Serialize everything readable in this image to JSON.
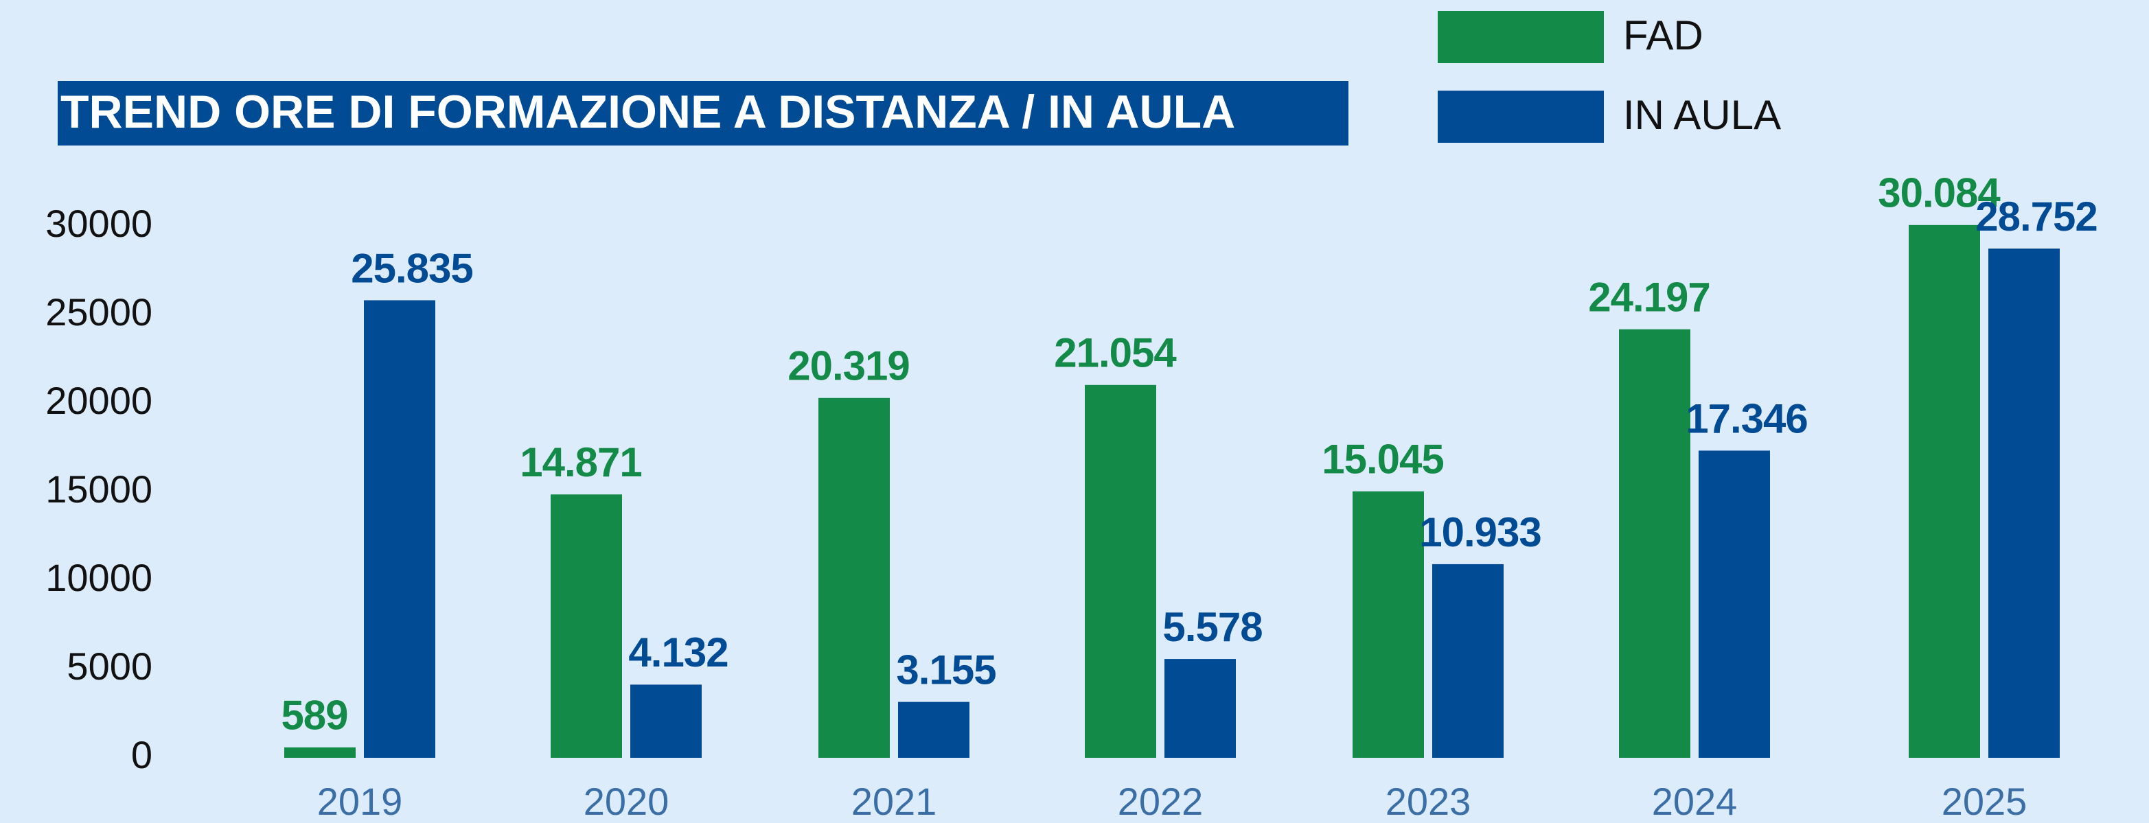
{
  "chart_data": {
    "type": "bar",
    "title": "TREND ORE DI FORMAZIONE A DISTANZA / IN AULA",
    "categories": [
      "2019",
      "2020",
      "2021",
      "2022",
      "2023",
      "2024",
      "2025"
    ],
    "series": [
      {
        "name": "FAD",
        "color": "#138a48",
        "values": [
          589,
          14871,
          20319,
          21054,
          15045,
          24197,
          30084
        ],
        "value_labels": [
          "589",
          "14.871",
          "20.319",
          "21.054",
          "15.045",
          "24.197",
          "30.084"
        ]
      },
      {
        "name": "IN AULA",
        "color": "#004b93",
        "values": [
          25835,
          4132,
          3155,
          5578,
          10933,
          17346,
          28752
        ],
        "value_labels": [
          "25.835",
          "4.132",
          "3.155",
          "5.578",
          "10.933",
          "17.346",
          "28.752"
        ]
      }
    ],
    "ylim": [
      0,
      30000
    ],
    "yticks": [
      0,
      5000,
      10000,
      15000,
      20000,
      25000,
      30000
    ],
    "grid": false,
    "legend": "top-right"
  }
}
